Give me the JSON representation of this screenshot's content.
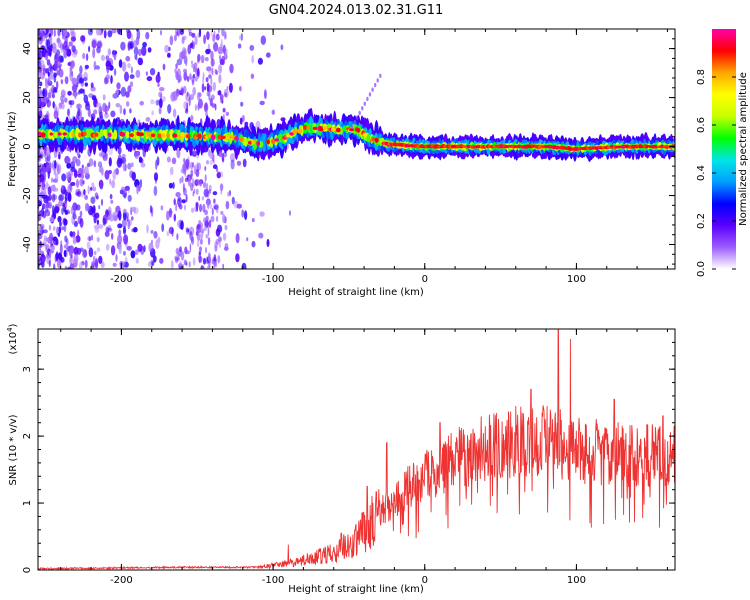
{
  "title": "GN04.2024.013.02.31.G11",
  "chart_data": [
    {
      "type": "heatmap",
      "name": "spectrogram",
      "xlabel": "Height of straight line (km)",
      "ylabel": "Frequency (Hz)",
      "xlim": [
        -255,
        165
      ],
      "ylim": [
        -50,
        48
      ],
      "xticks": [
        -200,
        -100,
        0,
        100
      ],
      "yticks": [
        -40,
        -20,
        0,
        20,
        40
      ],
      "ridge": [
        {
          "x": -255,
          "y": 5
        },
        {
          "x": -200,
          "y": 5
        },
        {
          "x": -130,
          "y": 4
        },
        {
          "x": -110,
          "y": 1
        },
        {
          "x": -95,
          "y": 3
        },
        {
          "x": -78,
          "y": 8
        },
        {
          "x": -60,
          "y": 7
        },
        {
          "x": -45,
          "y": 7
        },
        {
          "x": -35,
          "y": 3
        },
        {
          "x": -25,
          "y": 1
        },
        {
          "x": 0,
          "y": 0
        },
        {
          "x": 40,
          "y": 0
        },
        {
          "x": 80,
          "y": 0
        },
        {
          "x": 100,
          "y": -1
        },
        {
          "x": 130,
          "y": 0
        },
        {
          "x": 165,
          "y": 0
        }
      ],
      "colorbar": {
        "label": "Normalized spectral amplitude",
        "range": [
          0,
          1
        ],
        "ticks": [
          "0.0",
          "0.2",
          "0.4",
          "0.6",
          "0.8"
        ],
        "colors": [
          "#ffffff",
          "#9c5cff",
          "#5a00ff",
          "#0000ff",
          "#00a0ff",
          "#00e5e5",
          "#00ff00",
          "#c8ff00",
          "#ffff00",
          "#ffa500",
          "#ff0000",
          "#ff00aa"
        ]
      }
    },
    {
      "type": "line",
      "name": "snr",
      "xlabel": "Height of straight line (km)",
      "ylabel": "SNR (10 * v/v)",
      "scale_label": "(x10",
      "scale_exp": "4",
      "scale_close": ")",
      "xlim": [
        -255,
        165
      ],
      "ylim": [
        0,
        3.6
      ],
      "xticks": [
        -200,
        -100,
        0,
        100
      ],
      "yticks": [
        0,
        1,
        2,
        3
      ],
      "color": "#ee3333",
      "profile": [
        {
          "x": -255,
          "y": 0.02
        },
        {
          "x": -160,
          "y": 0.04
        },
        {
          "x": -110,
          "y": 0.04
        },
        {
          "x": -95,
          "y": 0.08
        },
        {
          "x": -80,
          "y": 0.15
        },
        {
          "x": -60,
          "y": 0.25
        },
        {
          "x": -45,
          "y": 0.45
        },
        {
          "x": -35,
          "y": 0.7
        },
        {
          "x": -25,
          "y": 0.95
        },
        {
          "x": -15,
          "y": 1.15
        },
        {
          "x": 0,
          "y": 1.4
        },
        {
          "x": 20,
          "y": 1.65
        },
        {
          "x": 40,
          "y": 1.82
        },
        {
          "x": 60,
          "y": 1.9
        },
        {
          "x": 80,
          "y": 1.95
        },
        {
          "x": 100,
          "y": 1.8
        },
        {
          "x": 130,
          "y": 1.72
        },
        {
          "x": 165,
          "y": 1.7
        }
      ],
      "peaks": [
        {
          "x": -90,
          "y": 0.38
        },
        {
          "x": -55,
          "y": 0.55
        },
        {
          "x": -38,
          "y": 1.25
        },
        {
          "x": -25,
          "y": 1.9
        },
        {
          "x": 10,
          "y": 2.2
        },
        {
          "x": 60,
          "y": 2.45
        },
        {
          "x": 70,
          "y": 2.7
        },
        {
          "x": 88,
          "y": 3.6
        },
        {
          "x": 96,
          "y": 3.45
        },
        {
          "x": 125,
          "y": 2.55
        },
        {
          "x": 157,
          "y": 2.3
        }
      ]
    }
  ]
}
